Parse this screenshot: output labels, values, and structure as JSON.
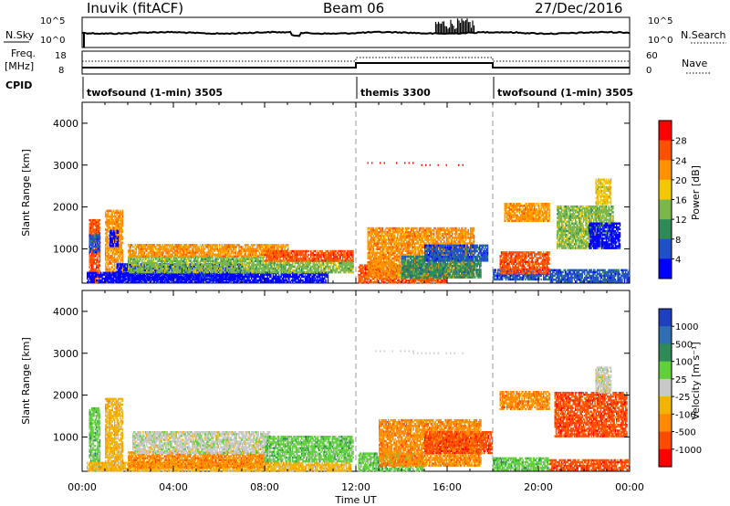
{
  "header": {
    "station": "Inuvik (fitACF)",
    "beam": "Beam 06",
    "date": "27/Dec/2016"
  },
  "side_labels": {
    "nsky": "N.Sky",
    "nsearch": "N.Search",
    "freq_line1": "Freq.",
    "freq_line2": "[MHz]",
    "nave": "Nave",
    "cpid": "CPID"
  },
  "mini_ticks": {
    "nsky_top": "10^5",
    "nsky_bottom": "10^0",
    "nsearch_top": "10^5",
    "nsearch_bottom": "10^0",
    "freq_top": "18",
    "freq_bottom": "8",
    "nave_top": "60",
    "nave_bottom": "0"
  },
  "cpid_segments": [
    {
      "label": "twofsound (1-min) 3505",
      "start": 0,
      "end": 12
    },
    {
      "label": "themis 3300",
      "start": 12,
      "end": 18
    },
    {
      "label": "twofsound (1-min) 3505",
      "start": 18,
      "end": 24
    }
  ],
  "chart_data": [
    {
      "type": "heatmap",
      "panel": "power",
      "xlabel": "Time UT",
      "ylabel": "Slant Range [km]",
      "xlim": [
        0,
        24
      ],
      "ylim": [
        180,
        4500
      ],
      "x_ticks": [
        "00:00",
        "04:00",
        "08:00",
        "12:00",
        "16:00",
        "20:00",
        "00:00"
      ],
      "y_ticks": [
        "1000",
        "2000",
        "3000",
        "4000"
      ],
      "colorbar_label": "Power [dB]",
      "colorbar_ticks": [
        "28",
        "24",
        "20",
        "16",
        "12",
        "8",
        "4"
      ],
      "colorbar_colors": [
        "#ff0000",
        "#ff5000",
        "#ff9000",
        "#f4c800",
        "#7ab64a",
        "#2e8b57",
        "#1e50c8",
        "#0000ff"
      ],
      "regions": [
        {
          "t0": 0.3,
          "t1": 0.8,
          "r0": 180,
          "r1": 1700,
          "level": 1
        },
        {
          "t0": 0.3,
          "t1": 0.8,
          "r0": 900,
          "r1": 1350,
          "level": 6
        },
        {
          "t0": 1.0,
          "t1": 1.8,
          "r0": 180,
          "r1": 1900,
          "level": 2
        },
        {
          "t0": 1.2,
          "t1": 1.6,
          "r0": 1050,
          "r1": 1450,
          "level": 7
        },
        {
          "t0": 0.2,
          "t1": 10.8,
          "r0": 180,
          "r1": 420,
          "level": 7
        },
        {
          "t0": 1.5,
          "t1": 7.0,
          "r0": 250,
          "r1": 620,
          "level": 7
        },
        {
          "t0": 2.0,
          "t1": 8.0,
          "r0": 420,
          "r1": 820,
          "level": 4
        },
        {
          "t0": 2.0,
          "t1": 9.0,
          "r0": 800,
          "r1": 1080,
          "level": 2
        },
        {
          "t0": 8.0,
          "t1": 11.9,
          "r0": 420,
          "r1": 700,
          "level": 4
        },
        {
          "t0": 8.0,
          "t1": 11.9,
          "r0": 700,
          "r1": 960,
          "level": 1
        },
        {
          "t0": 12.1,
          "t1": 16.0,
          "r0": 180,
          "r1": 600,
          "level": 1
        },
        {
          "t0": 12.5,
          "t1": 17.2,
          "r0": 300,
          "r1": 1500,
          "level": 2
        },
        {
          "t0": 14.0,
          "t1": 17.5,
          "r0": 300,
          "r1": 800,
          "level": 5
        },
        {
          "t0": 15.0,
          "t1": 17.8,
          "r0": 700,
          "r1": 1100,
          "level": 6
        },
        {
          "t0": 18.0,
          "t1": 20.6,
          "r0": 250,
          "r1": 500,
          "level": 6
        },
        {
          "t0": 18.3,
          "t1": 20.5,
          "r0": 400,
          "r1": 900,
          "level": 1
        },
        {
          "t0": 18.5,
          "t1": 20.5,
          "r0": 1650,
          "r1": 2100,
          "level": 2
        },
        {
          "t0": 20.5,
          "t1": 24.0,
          "r0": 200,
          "r1": 500,
          "level": 6
        },
        {
          "t0": 20.8,
          "t1": 23.3,
          "r0": 1000,
          "r1": 2000,
          "level": 4
        },
        {
          "t0": 22.2,
          "t1": 23.6,
          "r0": 1000,
          "r1": 1600,
          "level": 7
        },
        {
          "t0": 22.5,
          "t1": 23.2,
          "r0": 2050,
          "r1": 2650,
          "level": 3
        }
      ],
      "line_echoes": [
        {
          "t0": 12.5,
          "t1": 14.5,
          "r": 3050,
          "level": 0
        },
        {
          "t0": 14.5,
          "t1": 17.0,
          "r": 3000,
          "level": 0
        }
      ]
    },
    {
      "type": "heatmap",
      "panel": "velocity",
      "xlabel": "Time UT",
      "ylabel": "Slant Range [km]",
      "xlim": [
        0,
        24
      ],
      "ylim": [
        180,
        4500
      ],
      "x_ticks": [
        "00:00",
        "04:00",
        "08:00",
        "12:00",
        "16:00",
        "20:00",
        "00:00"
      ],
      "y_ticks": [
        "1000",
        "2000",
        "3000",
        "4000"
      ],
      "colorbar_label": "Velocity [m s⁻¹]",
      "colorbar_ticks": [
        "1000",
        "500",
        "100",
        "25",
        "-25",
        "-100",
        "-500",
        "-1000"
      ],
      "colorbar_colors": [
        "#1e40c0",
        "#2f6eb0",
        "#2e8b57",
        "#5fcf3a",
        "#c8c8c8",
        "#f2b400",
        "#ff8a00",
        "#ff4a00",
        "#ff0000"
      ],
      "regions": [
        {
          "t0": 0.3,
          "t1": 0.8,
          "r0": 180,
          "r1": 1700,
          "level": 3
        },
        {
          "t0": 1.0,
          "t1": 1.8,
          "r0": 180,
          "r1": 1900,
          "level": 5
        },
        {
          "t0": 0.2,
          "t1": 11.8,
          "r0": 180,
          "r1": 400,
          "level": 5
        },
        {
          "t0": 2.0,
          "t1": 8.0,
          "r0": 250,
          "r1": 620,
          "level": 6
        },
        {
          "t0": 2.2,
          "t1": 8.2,
          "r0": 600,
          "r1": 1100,
          "level": 4
        },
        {
          "t0": 8.0,
          "t1": 11.9,
          "r0": 400,
          "r1": 1000,
          "level": 3
        },
        {
          "t0": 12.1,
          "t1": 15.0,
          "r0": 180,
          "r1": 600,
          "level": 3
        },
        {
          "t0": 13.0,
          "t1": 17.5,
          "r0": 300,
          "r1": 1400,
          "level": 6
        },
        {
          "t0": 15.0,
          "t1": 18.0,
          "r0": 600,
          "r1": 1100,
          "level": 7
        },
        {
          "t0": 18.0,
          "t1": 20.5,
          "r0": 200,
          "r1": 500,
          "level": 3
        },
        {
          "t0": 18.3,
          "t1": 20.5,
          "r0": 1650,
          "r1": 2100,
          "level": 6
        },
        {
          "t0": 20.5,
          "t1": 24.0,
          "r0": 200,
          "r1": 450,
          "level": 7
        },
        {
          "t0": 20.7,
          "t1": 23.9,
          "r0": 1000,
          "r1": 2050,
          "level": 7
        },
        {
          "t0": 22.5,
          "t1": 23.2,
          "r0": 2050,
          "r1": 2650,
          "level": 4
        }
      ],
      "line_echoes": [
        {
          "t0": 12.5,
          "t1": 14.5,
          "r": 3050,
          "level": 4
        },
        {
          "t0": 14.5,
          "t1": 17.0,
          "r": 3000,
          "level": 4
        }
      ]
    }
  ]
}
